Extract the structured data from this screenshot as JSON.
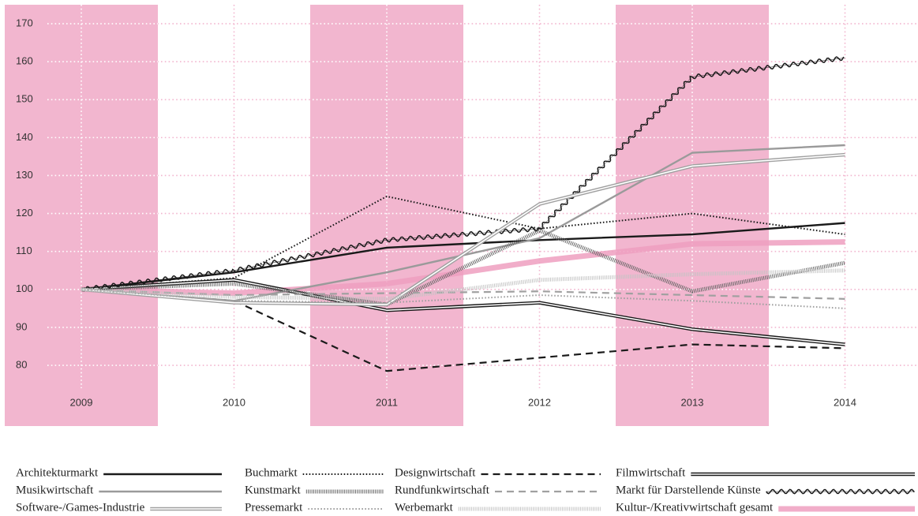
{
  "chart_data": {
    "type": "line",
    "categories": [
      "2009",
      "2010",
      "2011",
      "2012",
      "2013",
      "2014"
    ],
    "ylim": [
      64,
      175
    ],
    "yticks": [
      80,
      90,
      100,
      110,
      120,
      130,
      140,
      150,
      160,
      170
    ],
    "grid": true,
    "band_color": "#f2b6cf",
    "grid_color": "#f2b6cf",
    "series": [
      {
        "name": "Architekturmarkt",
        "color": "#1a1a1a",
        "style": "solid",
        "values": [
          100,
          104.5,
          111,
          113,
          114.5,
          117.5
        ]
      },
      {
        "name": "Buchmarkt",
        "color": "#1a1a1a",
        "style": "dotted",
        "values": [
          100,
          103,
          124.5,
          116,
          120,
          114.5
        ]
      },
      {
        "name": "Designwirtschaft",
        "color": "#1a1a1a",
        "style": "dashed",
        "values": [
          100,
          97,
          78.5,
          82,
          85.5,
          84.5
        ]
      },
      {
        "name": "Filmwirtschaft",
        "color": "#1a1a1a",
        "style": "double",
        "values": [
          100,
          102.5,
          94.5,
          96.5,
          89.5,
          85.5
        ]
      },
      {
        "name": "Musikwirtschaft",
        "color": "#9a9a9a",
        "style": "solid",
        "values": [
          100,
          97,
          104.5,
          113.5,
          136,
          138
        ]
      },
      {
        "name": "Kunstmarkt",
        "color": "#666666",
        "style": "striped",
        "values": [
          100,
          101.5,
          96,
          115.5,
          99.5,
          107
        ]
      },
      {
        "name": "Rundfunkwirtschaft",
        "color": "#a0a0a0",
        "style": "dashed",
        "values": [
          100,
          98.5,
          99,
          99.5,
          98.5,
          97.5
        ]
      },
      {
        "name": "Markt für Darstellende Künste",
        "color": "#1a1a1a",
        "style": "wavy",
        "values": [
          100,
          105,
          113,
          116,
          156,
          161
        ]
      },
      {
        "name": "Software-/Games-Industrie",
        "color": "#a0a0a0",
        "style": "double",
        "values": [
          100,
          96.5,
          96,
          122.5,
          132.5,
          135.5
        ]
      },
      {
        "name": "Pressemarkt",
        "color": "#a0a0a0",
        "style": "dotted",
        "values": [
          100,
          97,
          96.5,
          98.5,
          97,
          95
        ]
      },
      {
        "name": "Werbemarkt",
        "color": "#c4c4c4",
        "style": "striped",
        "values": [
          100,
          98,
          97.5,
          102.5,
          104,
          105
        ]
      },
      {
        "name": "Kultur-/Kreativwirtschaft gesamt",
        "color": "#ee9fbf",
        "style": "thick",
        "values": [
          100,
          99,
          101.5,
          107.5,
          112,
          112.5
        ]
      }
    ]
  }
}
